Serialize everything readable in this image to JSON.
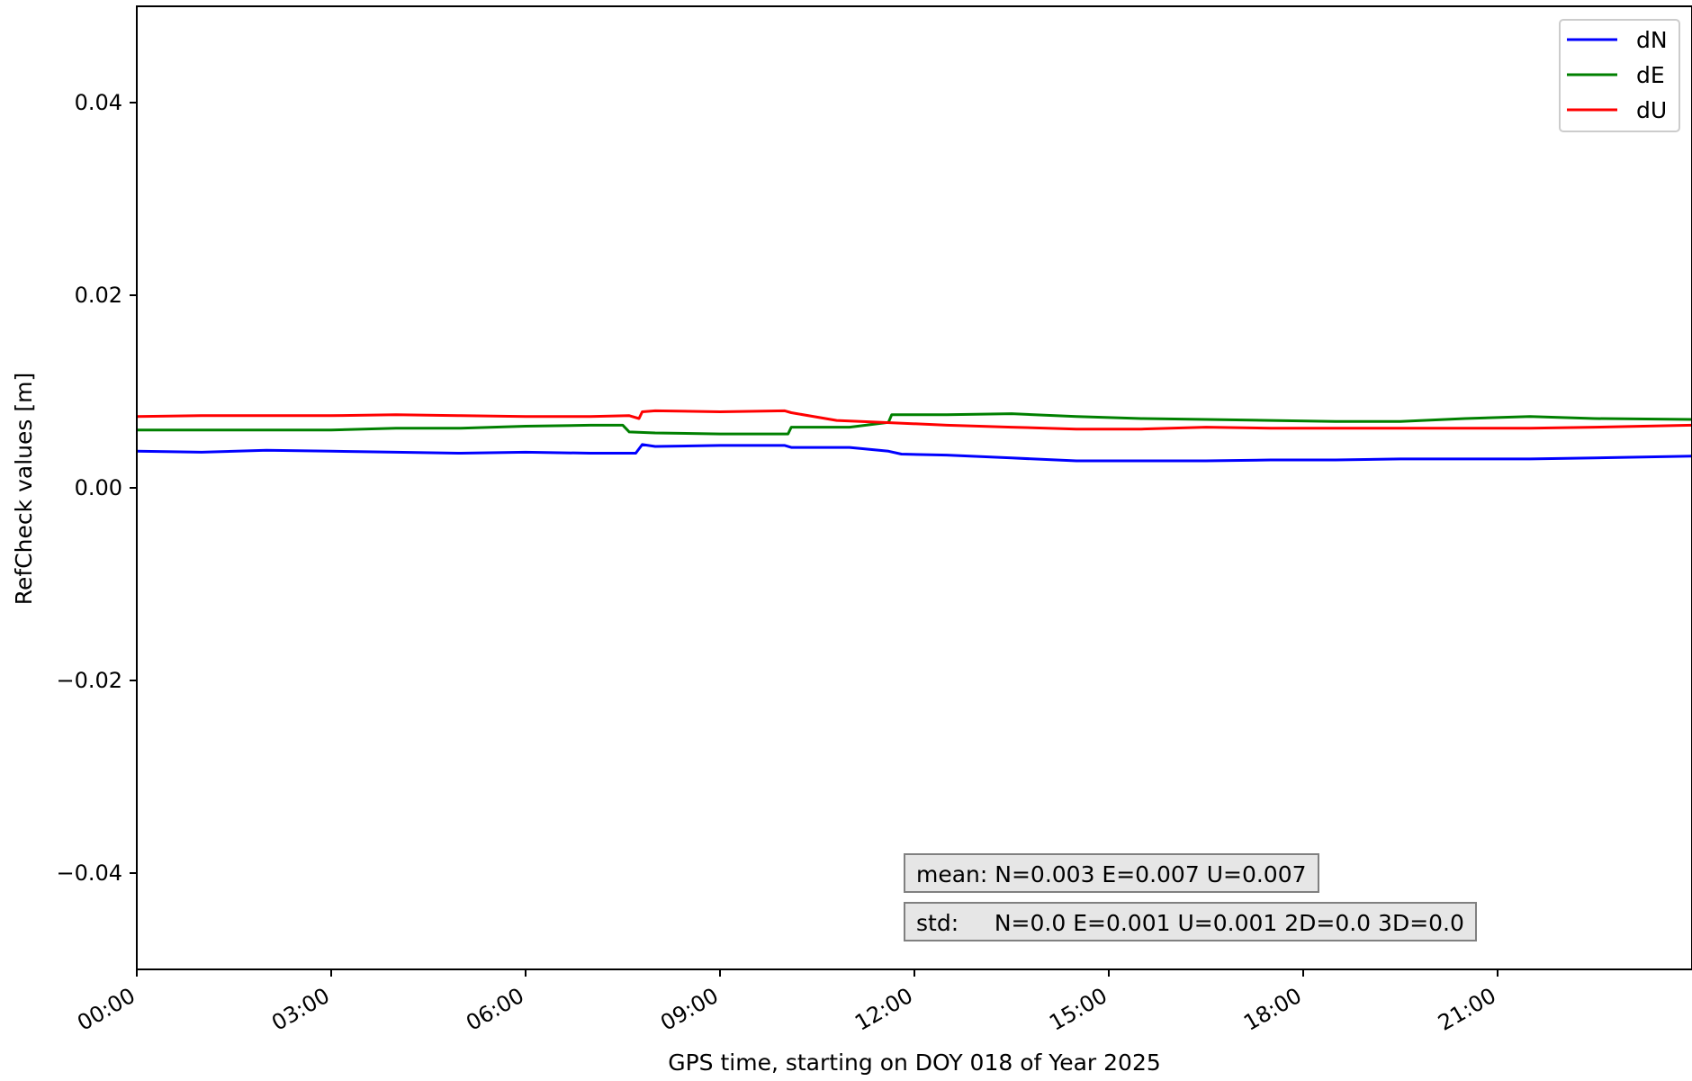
{
  "chart_data": {
    "type": "line",
    "xlabel": "GPS time, starting on DOY 018 of Year 2025",
    "ylabel": "RefCheck values [m]",
    "xlim": [
      0,
      24
    ],
    "ylim": [
      -0.05,
      0.05
    ],
    "x_ticks": [
      {
        "value": 0,
        "label": "00:00"
      },
      {
        "value": 3,
        "label": "03:00"
      },
      {
        "value": 6,
        "label": "06:00"
      },
      {
        "value": 9,
        "label": "09:00"
      },
      {
        "value": 12,
        "label": "12:00"
      },
      {
        "value": 15,
        "label": "15:00"
      },
      {
        "value": 18,
        "label": "18:00"
      },
      {
        "value": 21,
        "label": "21:00"
      }
    ],
    "y_ticks": [
      {
        "value": 0.04,
        "label": "0.04"
      },
      {
        "value": 0.02,
        "label": "0.02"
      },
      {
        "value": 0.0,
        "label": "0.00"
      },
      {
        "value": -0.02,
        "label": "−0.02"
      },
      {
        "value": -0.04,
        "label": "−0.04"
      }
    ],
    "grid": false,
    "legend_position": "top-right",
    "series": [
      {
        "name": "dN",
        "color": "#0000ff",
        "x": [
          0,
          1,
          2,
          3,
          4,
          5,
          6,
          7,
          7.7,
          7.8,
          8.0,
          9,
          10,
          10.1,
          11,
          11.6,
          11.8,
          12.5,
          13.5,
          14.5,
          15.5,
          16.5,
          17.5,
          18.5,
          19.5,
          20.5,
          21.5,
          22.5,
          24
        ],
        "values": [
          0.0038,
          0.0037,
          0.0039,
          0.0038,
          0.0037,
          0.0036,
          0.0037,
          0.0036,
          0.0036,
          0.0045,
          0.0043,
          0.0044,
          0.0044,
          0.0042,
          0.0042,
          0.0038,
          0.0035,
          0.0034,
          0.0031,
          0.0028,
          0.0028,
          0.0028,
          0.0029,
          0.0029,
          0.003,
          0.003,
          0.003,
          0.0031,
          0.0033
        ]
      },
      {
        "name": "dE",
        "color": "#008000",
        "x": [
          0,
          1,
          2,
          3,
          4,
          5,
          6,
          7,
          7.5,
          7.6,
          8.0,
          9,
          10.05,
          10.1,
          11,
          11.6,
          11.65,
          12.5,
          13.5,
          14.5,
          15.5,
          16.5,
          17.5,
          18.5,
          19.5,
          20.5,
          21.5,
          22.5,
          24
        ],
        "values": [
          0.006,
          0.006,
          0.006,
          0.006,
          0.0062,
          0.0062,
          0.0064,
          0.0065,
          0.0065,
          0.0058,
          0.0057,
          0.0056,
          0.0056,
          0.0063,
          0.0063,
          0.0068,
          0.0076,
          0.0076,
          0.0077,
          0.0074,
          0.0072,
          0.0071,
          0.007,
          0.0069,
          0.0069,
          0.0072,
          0.0074,
          0.0072,
          0.0071
        ]
      },
      {
        "name": "dU",
        "color": "#ff0000",
        "x": [
          0,
          1,
          2,
          3,
          4,
          5,
          6,
          7,
          7.6,
          7.75,
          7.8,
          8.0,
          9,
          10,
          10.1,
          10.8,
          11.5,
          12.5,
          13.5,
          14.5,
          15.5,
          16.5,
          17.5,
          18.5,
          19.5,
          20.5,
          21.5,
          22.5,
          24
        ],
        "values": [
          0.0074,
          0.0075,
          0.0075,
          0.0075,
          0.0076,
          0.0075,
          0.0074,
          0.0074,
          0.0075,
          0.0072,
          0.0079,
          0.008,
          0.0079,
          0.008,
          0.0078,
          0.007,
          0.0068,
          0.0065,
          0.0063,
          0.0061,
          0.0061,
          0.0063,
          0.0062,
          0.0062,
          0.0062,
          0.0062,
          0.0062,
          0.0063,
          0.0065
        ]
      }
    ],
    "annotations": [
      "mean: N=0.003 E=0.007 U=0.007",
      "std:     N=0.0 E=0.001 U=0.001 2D=0.0 3D=0.0"
    ]
  }
}
